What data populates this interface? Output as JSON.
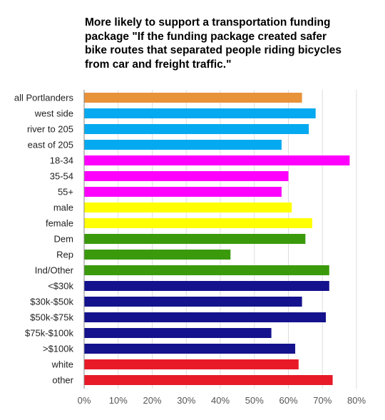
{
  "chart_data": {
    "type": "bar",
    "orientation": "horizontal",
    "title_lines": [
      "More likely to support a transportation funding",
      "package \"If the funding package created safer",
      "bike routes that separated people riding bicycles",
      "from car and freight traffic.\""
    ],
    "xlabel": "",
    "ylabel": "",
    "xlim": [
      0,
      80
    ],
    "x_ticks": [
      "0%",
      "10%",
      "20%",
      "30%",
      "40%",
      "50%",
      "60%",
      "70%",
      "80%"
    ],
    "grid": "vertical",
    "categories": [
      "all Portlanders",
      "west side",
      "river to 205",
      "east of 205",
      "18-34",
      "35-54",
      "55+",
      "male",
      "female",
      "Dem",
      "Rep",
      "Ind/Other",
      "<$30k",
      "$30k-$50k",
      "$50k-$75k",
      "$75k-$100k",
      ">$100k",
      "white",
      "other"
    ],
    "values": [
      64,
      68,
      66,
      58,
      78,
      60,
      58,
      61,
      67,
      65,
      43,
      72,
      72,
      64,
      71,
      55,
      62,
      63,
      73
    ],
    "bar_colors": [
      "#e8923a",
      "#05a9f0",
      "#05a9f0",
      "#05a9f0",
      "#ff00ff",
      "#ff00ff",
      "#ff00ff",
      "#ffff00",
      "#ffff00",
      "#3a9a0c",
      "#3a9a0c",
      "#3a9a0c",
      "#14128c",
      "#14128c",
      "#14128c",
      "#14128c",
      "#14128c",
      "#e81a28",
      "#e81a28"
    ],
    "grid_color": "#dddddd",
    "axis_color": "#888888"
  }
}
